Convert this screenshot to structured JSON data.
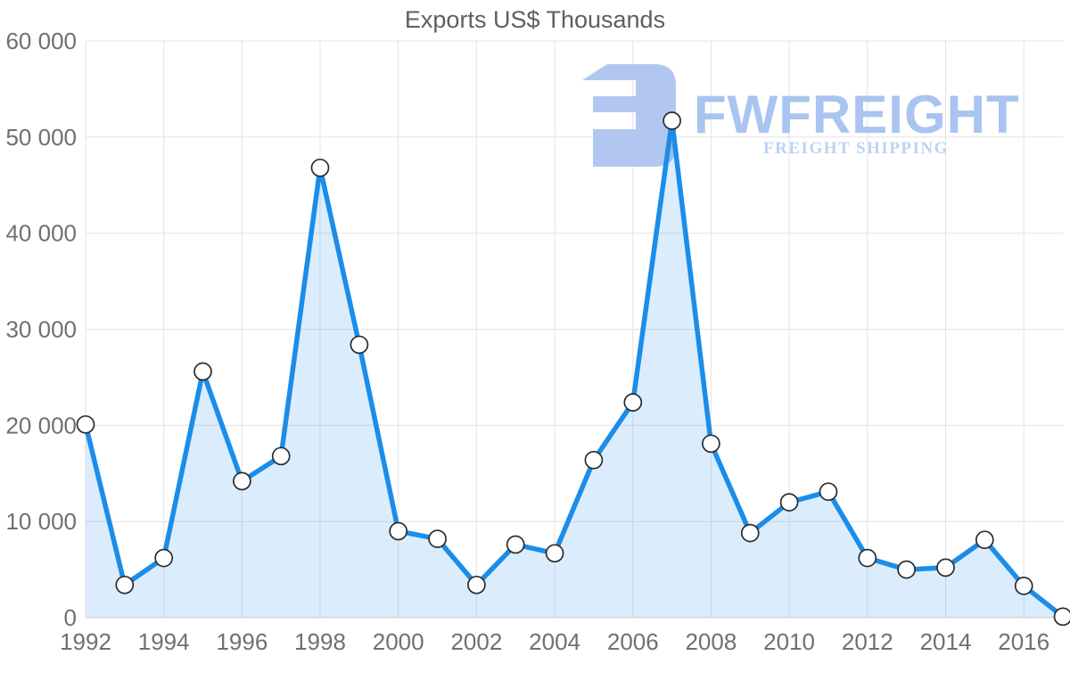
{
  "chart_data": {
    "type": "area",
    "title": "Exports US$ Thousands",
    "xlabel": "",
    "ylabel": "",
    "x": [
      1992,
      1993,
      1994,
      1995,
      1996,
      1997,
      1998,
      1999,
      2000,
      2001,
      2002,
      2003,
      2004,
      2005,
      2006,
      2007,
      2008,
      2009,
      2010,
      2011,
      2012,
      2013,
      2014,
      2015,
      2016,
      2017
    ],
    "values": [
      20100,
      3400,
      6200,
      25600,
      14200,
      16800,
      46800,
      28400,
      9000,
      8200,
      3400,
      7600,
      6700,
      16400,
      22400,
      51700,
      18100,
      8800,
      12000,
      13100,
      6200,
      5000,
      5200,
      8100,
      3300,
      100
    ],
    "ylim": [
      0,
      60000
    ],
    "ytick_interval": 10000,
    "ytick_labels": [
      "0",
      "10 000",
      "20 000",
      "30 000",
      "40 000",
      "50 000",
      "60 000"
    ],
    "xtick_labels": [
      "1992",
      "1994",
      "1996",
      "1998",
      "2000",
      "2002",
      "2004",
      "2006",
      "2008",
      "2010",
      "2012",
      "2014",
      "2016"
    ],
    "grid": true,
    "legend": false,
    "marker_shape": "circle",
    "line_color": "#1b8de9",
    "fill_color": "rgba(30,141,234,0.16)",
    "marker_fill": "#ffffff",
    "marker_stroke": "#2b2b2b",
    "grid_color": "#e3e3e3",
    "tick_color": "#707070",
    "title_color": "#5f5f5f"
  },
  "watermark": {
    "brand": "FWFREIGHT",
    "subtitle": "FREIGHT SHIPPING",
    "icon": "fwfreight-logo",
    "icon_color": "#b2c7ef",
    "brand_color": "#a9c4f0",
    "subtitle_color": "#bdd2f3"
  }
}
